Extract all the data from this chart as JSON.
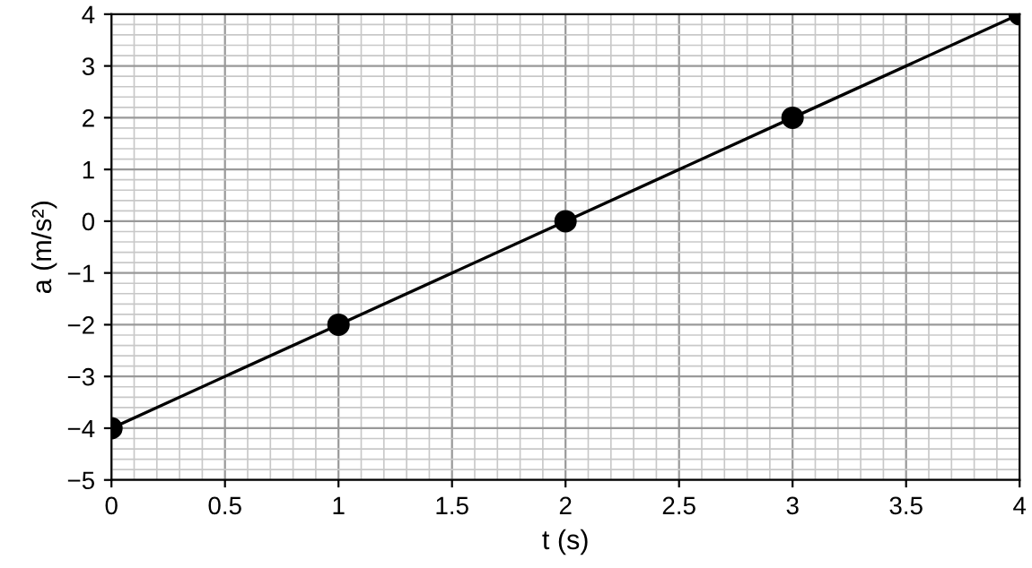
{
  "chart_data": {
    "type": "line",
    "xlabel": "t (s)",
    "ylabel": "a (m/s²)",
    "x": [
      0,
      1,
      2,
      3,
      4
    ],
    "series": [
      {
        "color": "#000000",
        "values": [
          -4,
          -2,
          0,
          2,
          4
        ]
      }
    ],
    "xlim": [
      0,
      4
    ],
    "ylim": [
      -5,
      4
    ],
    "xticks": [
      0,
      0.5,
      1,
      1.5,
      2,
      2.5,
      3,
      3.5,
      4
    ],
    "yticks": [
      -5,
      -4,
      -3,
      -2,
      -1,
      0,
      1,
      2,
      3,
      4
    ],
    "grid": true,
    "marker": "circle",
    "line_style": "solid"
  }
}
